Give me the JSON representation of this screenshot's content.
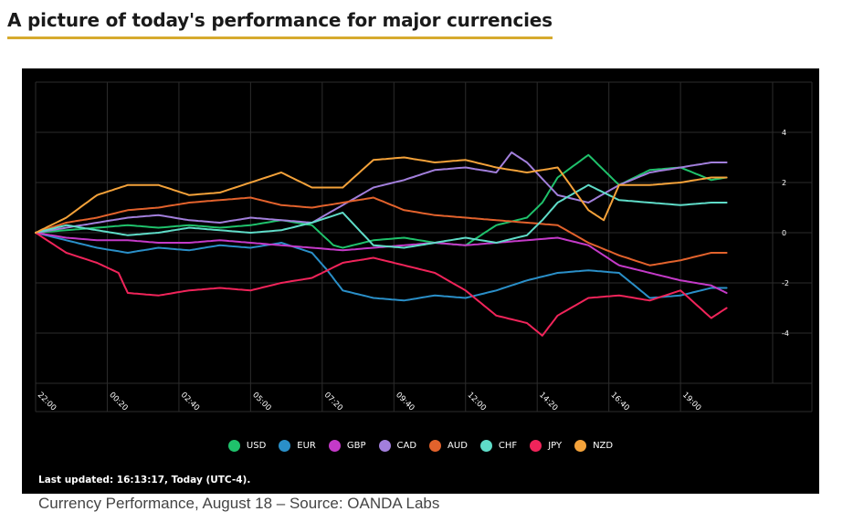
{
  "heading": "A picture of today's performance for major currencies",
  "caption": "Currency Performance, August 18 – Source: OANDA Labs",
  "last_updated": "Last updated: 16:13:17, Today (UTC-4).",
  "chart_data": {
    "type": "line",
    "title": "",
    "xlabel": "",
    "ylabel": "",
    "ylim": [
      -6,
      6
    ],
    "yticks": [
      4,
      2,
      0,
      -2,
      -4
    ],
    "ytick_labels": [
      "4",
      "2",
      "0",
      "-2",
      "-4"
    ],
    "x_range": [
      0,
      24
    ],
    "xticks": [
      0,
      2.333,
      4.667,
      7,
      9.333,
      11.667,
      14,
      16.333,
      18.667,
      21
    ],
    "categories": [
      "22:00",
      "00:20",
      "02:40",
      "05:00",
      "07:20",
      "09:40",
      "12:00",
      "14:20",
      "16:40",
      "19:00"
    ],
    "grid": true,
    "legend_position": "bottom",
    "series": [
      {
        "name": "USD",
        "color": "#1fc16b",
        "x": [
          0,
          1,
          2,
          3,
          4,
          5,
          6,
          7,
          8,
          9,
          9.7,
          10,
          11,
          12,
          13,
          14,
          15,
          16,
          16.5,
          17,
          18,
          19,
          20,
          21,
          22,
          22.5
        ],
        "values": [
          0,
          0.1,
          0.2,
          0.3,
          0.2,
          0.3,
          0.2,
          0.3,
          0.5,
          0.3,
          -0.5,
          -0.6,
          -0.3,
          -0.2,
          -0.4,
          -0.5,
          0.3,
          0.6,
          1.2,
          2.2,
          3.1,
          1.9,
          2.5,
          2.6,
          2.1,
          2.2
        ]
      },
      {
        "name": "EUR",
        "color": "#2a8fc8",
        "x": [
          0,
          1,
          2,
          3,
          4,
          5,
          6,
          7,
          8,
          9,
          9.5,
          10,
          11,
          12,
          13,
          14,
          15,
          16,
          17,
          18,
          19,
          20,
          21,
          22,
          22.5
        ],
        "values": [
          0,
          -0.3,
          -0.6,
          -0.8,
          -0.6,
          -0.7,
          -0.5,
          -0.6,
          -0.4,
          -0.8,
          -1.5,
          -2.3,
          -2.6,
          -2.7,
          -2.5,
          -2.6,
          -2.3,
          -1.9,
          -1.6,
          -1.5,
          -1.6,
          -2.6,
          -2.5,
          -2.2,
          -2.2
        ]
      },
      {
        "name": "GBP",
        "color": "#c43ac8",
        "x": [
          0,
          1,
          2,
          3,
          4,
          5,
          6,
          7,
          8,
          9,
          10,
          11,
          12,
          13,
          14,
          15,
          16,
          17,
          18,
          19,
          20,
          21,
          22,
          22.5
        ],
        "values": [
          0,
          -0.2,
          -0.3,
          -0.3,
          -0.4,
          -0.4,
          -0.3,
          -0.4,
          -0.5,
          -0.6,
          -0.7,
          -0.6,
          -0.5,
          -0.4,
          -0.5,
          -0.4,
          -0.3,
          -0.2,
          -0.5,
          -1.3,
          -1.6,
          -1.9,
          -2.1,
          -2.4
        ]
      },
      {
        "name": "CAD",
        "color": "#a27fdc",
        "x": [
          0,
          1,
          2,
          3,
          4,
          5,
          6,
          7,
          8,
          9,
          10,
          11,
          12,
          13,
          14,
          15,
          15.5,
          16,
          17,
          18,
          19,
          20,
          21,
          22,
          22.5
        ],
        "values": [
          0,
          0.2,
          0.4,
          0.6,
          0.7,
          0.5,
          0.4,
          0.6,
          0.5,
          0.4,
          1.1,
          1.8,
          2.1,
          2.5,
          2.6,
          2.4,
          3.2,
          2.8,
          1.5,
          1.2,
          1.9,
          2.4,
          2.6,
          2.8,
          2.8
        ]
      },
      {
        "name": "AUD",
        "color": "#e2622c",
        "x": [
          0,
          1,
          2,
          3,
          4,
          5,
          6,
          7,
          8,
          9,
          10,
          11,
          12,
          13,
          14,
          15,
          16,
          17,
          18,
          19,
          20,
          21,
          22,
          22.5
        ],
        "values": [
          0,
          0.4,
          0.6,
          0.9,
          1.0,
          1.2,
          1.3,
          1.4,
          1.1,
          1.0,
          1.2,
          1.4,
          0.9,
          0.7,
          0.6,
          0.5,
          0.4,
          0.3,
          -0.4,
          -0.9,
          -1.3,
          -1.1,
          -0.8,
          -0.8
        ]
      },
      {
        "name": "CHF",
        "color": "#5fdcc8",
        "x": [
          0,
          1,
          2,
          3,
          4,
          5,
          6,
          7,
          8,
          9,
          10,
          11,
          12,
          13,
          14,
          15,
          16,
          16.5,
          17,
          18,
          19,
          20,
          21,
          22,
          22.5
        ],
        "values": [
          0,
          0.3,
          0.1,
          -0.1,
          0.0,
          0.2,
          0.1,
          0.0,
          0.1,
          0.4,
          0.8,
          -0.5,
          -0.6,
          -0.4,
          -0.2,
          -0.4,
          -0.1,
          0.5,
          1.2,
          1.9,
          1.3,
          1.2,
          1.1,
          1.2,
          1.2
        ]
      },
      {
        "name": "JPY",
        "color": "#f0245a",
        "x": [
          0,
          1,
          2,
          2.7,
          3,
          4,
          5,
          6,
          7,
          8,
          9,
          10,
          11,
          12,
          13,
          14,
          15,
          16,
          16.5,
          17,
          18,
          19,
          20,
          21,
          22,
          22.5
        ],
        "values": [
          0,
          -0.8,
          -1.2,
          -1.6,
          -2.4,
          -2.5,
          -2.3,
          -2.2,
          -2.3,
          -2.0,
          -1.8,
          -1.2,
          -1.0,
          -1.3,
          -1.6,
          -2.3,
          -3.3,
          -3.6,
          -4.1,
          -3.3,
          -2.6,
          -2.5,
          -2.7,
          -2.3,
          -3.4,
          -3.0
        ]
      },
      {
        "name": "NZD",
        "color": "#f4a23a",
        "x": [
          0,
          1,
          2,
          3,
          4,
          5,
          6,
          7,
          8,
          9,
          10,
          11,
          12,
          13,
          14,
          15,
          16,
          17,
          18,
          18.5,
          19,
          20,
          21,
          22,
          22.5
        ],
        "values": [
          0,
          0.6,
          1.5,
          1.9,
          1.9,
          1.5,
          1.6,
          2.0,
          2.4,
          1.8,
          1.8,
          2.9,
          3.0,
          2.8,
          2.9,
          2.6,
          2.4,
          2.6,
          0.9,
          0.5,
          1.9,
          1.9,
          2.0,
          2.2,
          2.2
        ]
      }
    ]
  }
}
